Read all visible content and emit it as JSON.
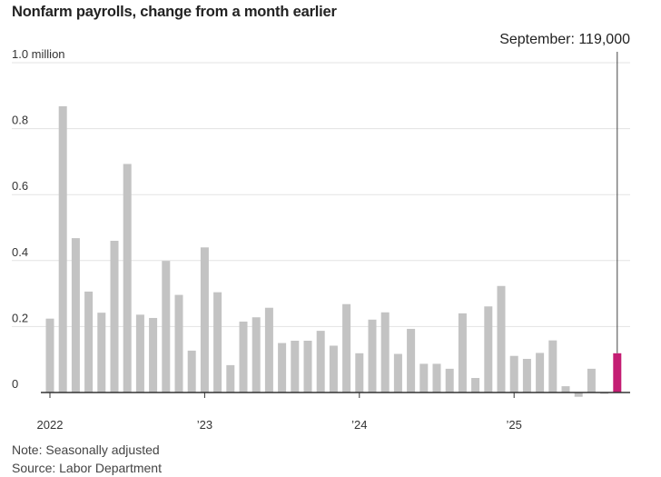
{
  "title": "Nonfarm payrolls, change from a month earlier",
  "note": "Note: Seasonally adjusted",
  "source": "Source: Labor Department",
  "colors": {
    "bar": "#c3c3c3",
    "highlight": "#c41e74",
    "grid": "#e3e3e3",
    "axis": "#333333"
  },
  "chart_data": {
    "type": "bar",
    "title": "Nonfarm payrolls, change from a month earlier",
    "xlabel": "",
    "ylabel": "",
    "ylim": [
      -0.02,
      1.0
    ],
    "y_ticks": [
      {
        "value": 0,
        "label": "0"
      },
      {
        "value": 0.2,
        "label": "0.2"
      },
      {
        "value": 0.4,
        "label": "0.4"
      },
      {
        "value": 0.6,
        "label": "0.6"
      },
      {
        "value": 0.8,
        "label": "0.8"
      },
      {
        "value": 1.0,
        "label": "1.0 million"
      }
    ],
    "x_ticks": [
      {
        "index": 0,
        "label": "2022"
      },
      {
        "index": 12,
        "label": "’23"
      },
      {
        "index": 24,
        "label": "’24"
      },
      {
        "index": 36,
        "label": "’25"
      }
    ],
    "categories": [
      "Jan 2022",
      "Feb 2022",
      "Mar 2022",
      "Apr 2022",
      "May 2022",
      "Jun 2022",
      "Jul 2022",
      "Aug 2022",
      "Sep 2022",
      "Oct 2022",
      "Nov 2022",
      "Dec 2022",
      "Jan 2023",
      "Feb 2023",
      "Mar 2023",
      "Apr 2023",
      "May 2023",
      "Jun 2023",
      "Jul 2023",
      "Aug 2023",
      "Sep 2023",
      "Oct 2023",
      "Nov 2023",
      "Dec 2023",
      "Jan 2024",
      "Feb 2024",
      "Mar 2024",
      "Apr 2024",
      "May 2024",
      "Jun 2024",
      "Jul 2024",
      "Aug 2024",
      "Sep 2024",
      "Oct 2024",
      "Nov 2024",
      "Dec 2024",
      "Jan 2025",
      "Feb 2025",
      "Mar 2025",
      "Apr 2025",
      "May 2025",
      "Jun 2025",
      "Jul 2025",
      "Aug 2025",
      "Sep 2025"
    ],
    "values": [
      0.224,
      0.868,
      0.468,
      0.306,
      0.242,
      0.46,
      0.693,
      0.236,
      0.226,
      0.399,
      0.296,
      0.127,
      0.44,
      0.304,
      0.083,
      0.215,
      0.228,
      0.257,
      0.15,
      0.157,
      0.157,
      0.187,
      0.142,
      0.268,
      0.119,
      0.221,
      0.243,
      0.117,
      0.193,
      0.087,
      0.087,
      0.072,
      0.24,
      0.044,
      0.261,
      0.323,
      0.111,
      0.102,
      0.12,
      0.158,
      0.019,
      -0.013,
      0.072,
      -0.004,
      0.119
    ],
    "highlight_index": 44,
    "annotation": "September: 119,000"
  }
}
